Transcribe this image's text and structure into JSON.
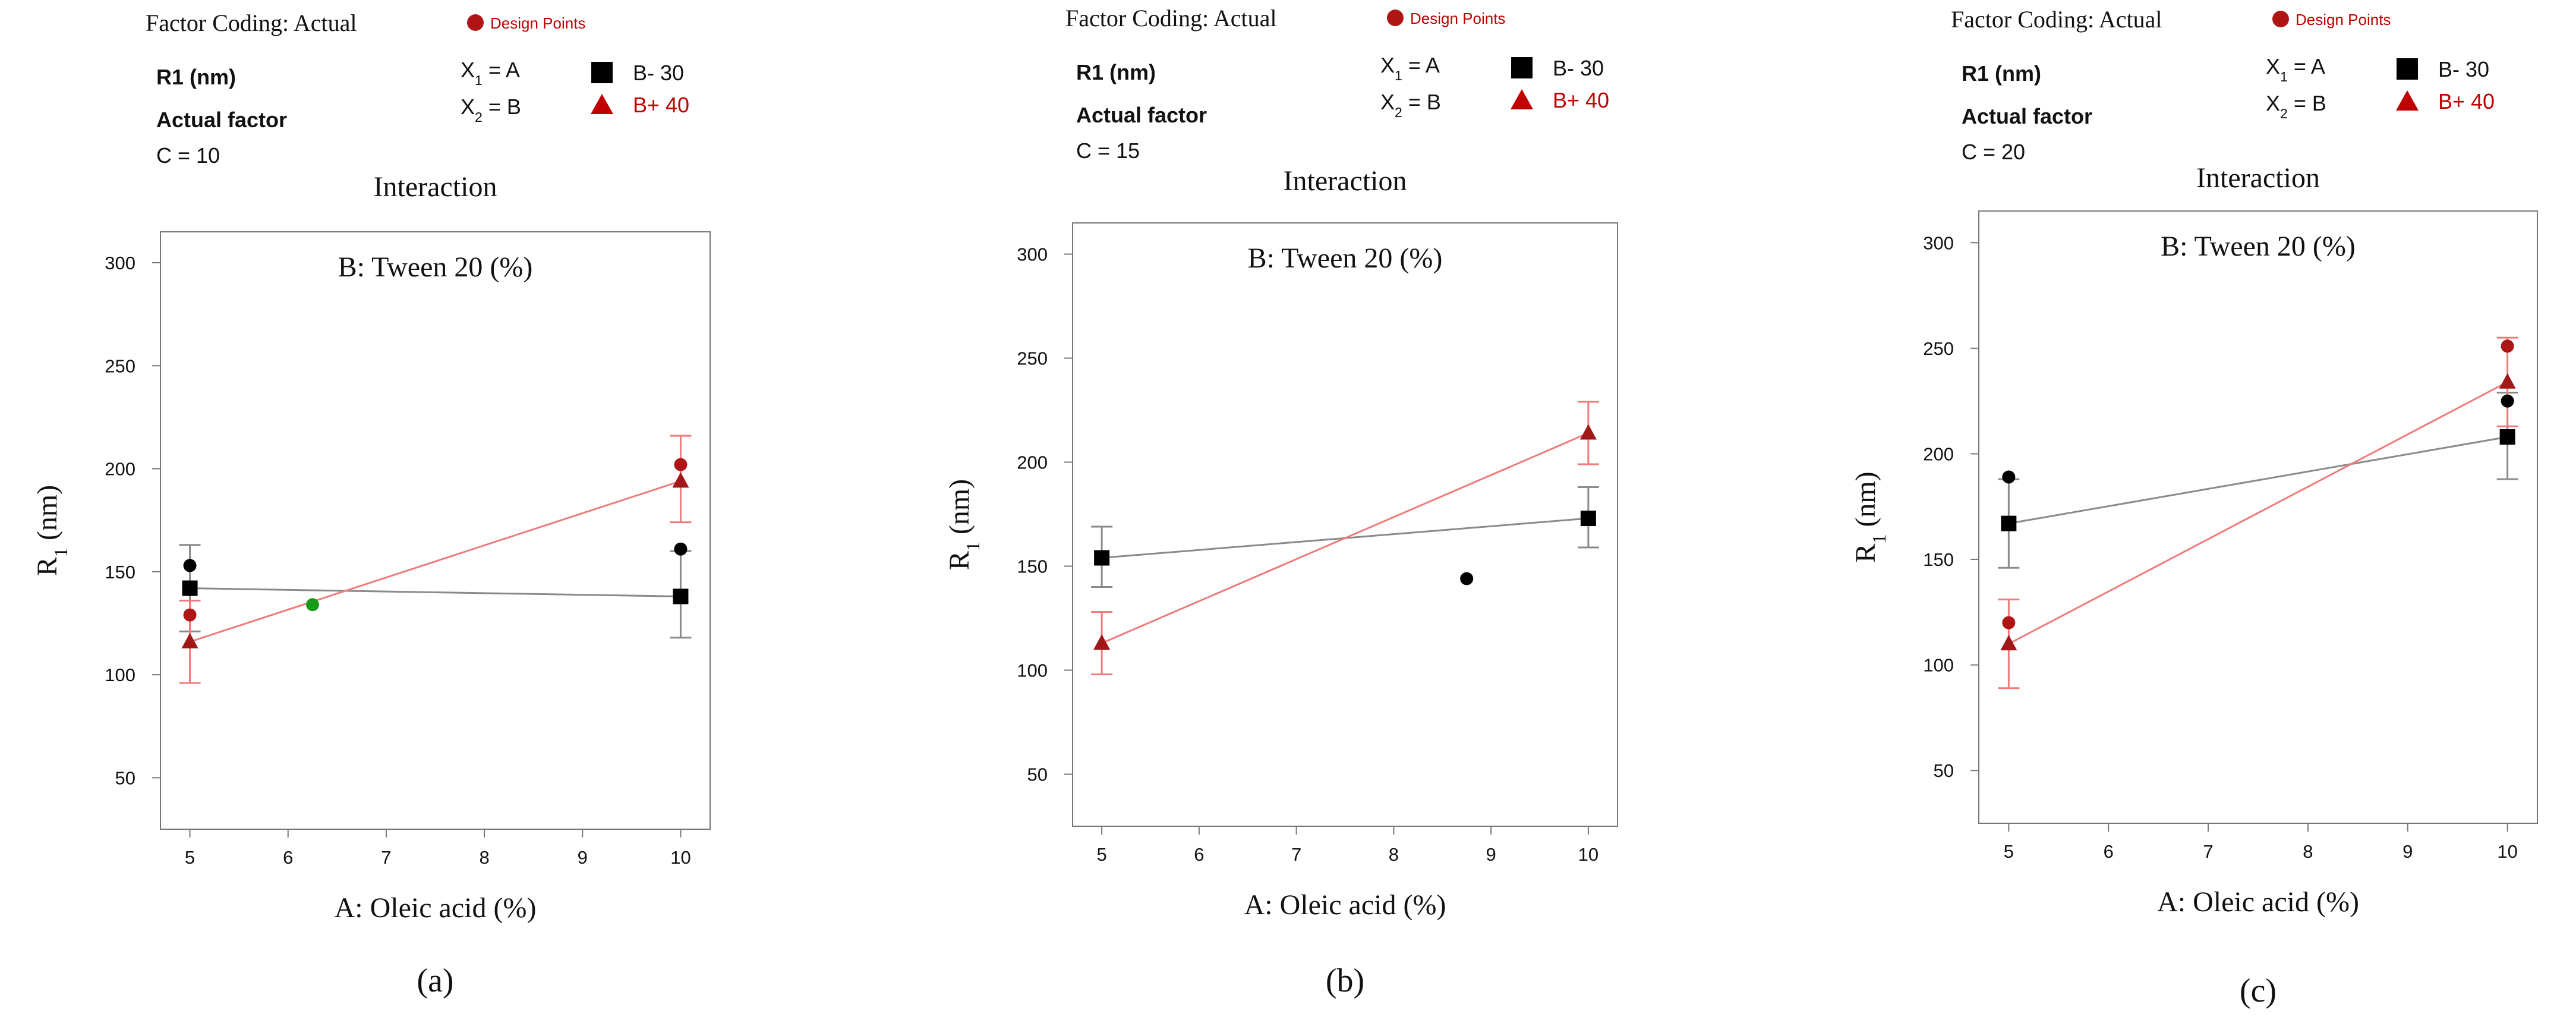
{
  "figure": {
    "header_labels": {
      "factor_coding": "Factor Coding:  Actual",
      "design_points": "Design Points",
      "response": "R1 (nm)",
      "x1_prefix": "X",
      "x1_sub": "1",
      "x1_suffix": " = A",
      "x2_prefix": "X",
      "x2_sub": "2",
      "x2_suffix": " = B",
      "legend_low": "B- 30",
      "legend_high": "B+ 40",
      "actual_factor": "Actual factor"
    },
    "colors": {
      "low_series": "#000000",
      "low_line": "#8a8a8a",
      "high_series": "#c00000",
      "high_line": "#ef7b7b",
      "high_triangle": "#a01818",
      "design_point_dot": "#b01515",
      "green_point": "#1a9a1a",
      "frame": "#777777",
      "text": "#111111"
    }
  },
  "chart_data": [
    {
      "type": "line",
      "panel_label": "(a)",
      "actual_factor_value": "C = 10",
      "title": "Interaction",
      "subtitle": "B: Tween 20 (%)",
      "xlabel": "A: Oleic acid (%)",
      "ylabel_main": "R",
      "ylabel_sub": "1",
      "ylabel_units": " (nm)",
      "xlim": [
        4.7,
        10.3
      ],
      "ylim": [
        25,
        315
      ],
      "x_ticks": [
        5,
        6,
        7,
        8,
        9,
        10
      ],
      "y_ticks": [
        50,
        100,
        150,
        200,
        250,
        300
      ],
      "series": [
        {
          "name": "B- 30",
          "style": "low",
          "x": [
            5,
            10
          ],
          "y": [
            142,
            138
          ],
          "error_low": [
            121,
            118
          ],
          "error_high": [
            163,
            160
          ]
        },
        {
          "name": "B+ 40",
          "style": "high",
          "x": [
            5,
            10
          ],
          "y": [
            116,
            194
          ],
          "error_low": [
            96,
            174
          ],
          "error_high": [
            136,
            216
          ]
        }
      ],
      "design_points": [
        {
          "x": 5,
          "y": 153,
          "kind": "black"
        },
        {
          "x": 5,
          "y": 129,
          "kind": "red"
        },
        {
          "x": 10,
          "y": 161,
          "kind": "black"
        },
        {
          "x": 10,
          "y": 202,
          "kind": "red"
        },
        {
          "x": 6.25,
          "y": 134,
          "kind": "green"
        }
      ]
    },
    {
      "type": "line",
      "panel_label": "(b)",
      "actual_factor_value": "C = 15",
      "title": "Interaction",
      "subtitle": "B: Tween 20 (%)",
      "xlabel": "A: Oleic acid (%)",
      "ylabel_main": "R",
      "ylabel_sub": "1",
      "ylabel_units": " (nm)",
      "xlim": [
        4.7,
        10.3
      ],
      "ylim": [
        25,
        315
      ],
      "x_ticks": [
        5,
        6,
        7,
        8,
        9,
        10
      ],
      "y_ticks": [
        50,
        100,
        150,
        200,
        250,
        300
      ],
      "series": [
        {
          "name": "B- 30",
          "style": "low",
          "x": [
            5,
            10
          ],
          "y": [
            154,
            173
          ],
          "error_low": [
            140,
            159
          ],
          "error_high": [
            169,
            188
          ]
        },
        {
          "name": "B+ 40",
          "style": "high",
          "x": [
            5,
            10
          ],
          "y": [
            113,
            214
          ],
          "error_low": [
            98,
            199
          ],
          "error_high": [
            128,
            229
          ]
        }
      ],
      "design_points": [
        {
          "x": 8.75,
          "y": 144,
          "kind": "black"
        }
      ]
    },
    {
      "type": "line",
      "panel_label": "(c)",
      "actual_factor_value": "C = 20",
      "title": "Interaction",
      "subtitle": "B: Tween 20 (%)",
      "xlabel": "A: Oleic acid (%)",
      "ylabel_main": "R",
      "ylabel_sub": "1",
      "ylabel_units": " (nm)",
      "xlim": [
        4.7,
        10.3
      ],
      "ylim": [
        25,
        315
      ],
      "x_ticks": [
        5,
        6,
        7,
        8,
        9,
        10
      ],
      "y_ticks": [
        50,
        100,
        150,
        200,
        250,
        300
      ],
      "series": [
        {
          "name": "B- 30",
          "style": "low",
          "x": [
            5,
            10
          ],
          "y": [
            167,
            208
          ],
          "error_low": [
            146,
            188
          ],
          "error_high": [
            188,
            229
          ]
        },
        {
          "name": "B+ 40",
          "style": "high",
          "x": [
            5,
            10
          ],
          "y": [
            110,
            234
          ],
          "error_low": [
            89,
            213
          ],
          "error_high": [
            131,
            255
          ]
        }
      ],
      "design_points": [
        {
          "x": 5,
          "y": 189,
          "kind": "black"
        },
        {
          "x": 5,
          "y": 120,
          "kind": "red"
        },
        {
          "x": 10,
          "y": 225,
          "kind": "black"
        },
        {
          "x": 10,
          "y": 251,
          "kind": "red"
        }
      ]
    }
  ]
}
